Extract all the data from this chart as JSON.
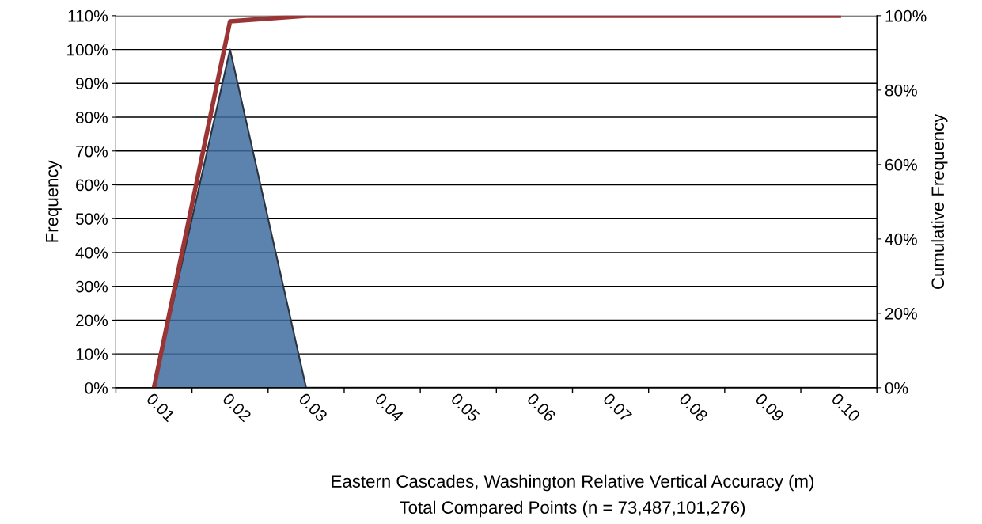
{
  "chart_data": {
    "type": "area",
    "categories": [
      "0.01",
      "0.02",
      "0.03",
      "0.04",
      "0.05",
      "0.06",
      "0.07",
      "0.08",
      "0.09",
      "0.10"
    ],
    "series": [
      {
        "color": "#3f6d9f",
        "values": [
          0,
          100,
          0,
          0,
          0,
          0,
          0,
          0,
          0,
          0
        ]
      },
      {
        "type": "line",
        "axis": "y2",
        "color": "#9b3535",
        "values": [
          0,
          98.5,
          100,
          100,
          100,
          100,
          100,
          100,
          100,
          100
        ]
      }
    ],
    "ylabel": "Frequency",
    "y2label": "Cumulative Frequency",
    "xlabel": "Eastern Cascades, Washington Relative Vertical Accuracy (m)",
    "annotations": [
      "Total Compared Points (n = 73,487,101,276)"
    ],
    "ylim": [
      0,
      110
    ],
    "yticks": [
      {
        "value": 0,
        "label": "0%"
      },
      {
        "value": 10,
        "label": "10%"
      },
      {
        "value": 20,
        "label": "20%"
      },
      {
        "value": 30,
        "label": "30%"
      },
      {
        "value": 40,
        "label": "40%"
      },
      {
        "value": 50,
        "label": "50%"
      },
      {
        "value": 60,
        "label": "60%"
      },
      {
        "value": 70,
        "label": "70%"
      },
      {
        "value": 80,
        "label": "80%"
      },
      {
        "value": 90,
        "label": "90%"
      },
      {
        "value": 100,
        "label": "100%"
      },
      {
        "value": 110,
        "label": "110%"
      }
    ],
    "y2lim": [
      0,
      100
    ],
    "y2ticks": [
      {
        "value": 0,
        "label": "0%"
      },
      {
        "value": 20,
        "label": "20%"
      },
      {
        "value": 40,
        "label": "40%"
      },
      {
        "value": 60,
        "label": "60%"
      },
      {
        "value": 80,
        "label": "80%"
      },
      {
        "value": 100,
        "label": "100%"
      }
    ],
    "grid": "y",
    "marker": "none",
    "line_style": "solid"
  }
}
